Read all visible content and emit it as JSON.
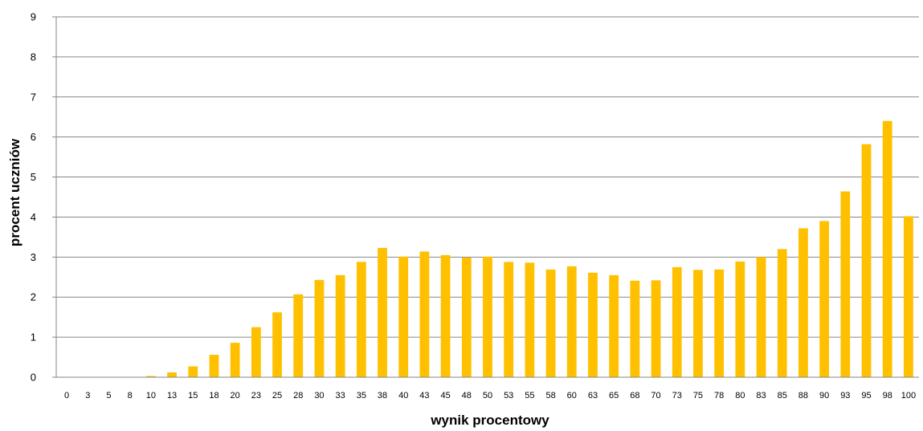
{
  "chart_data": {
    "type": "bar",
    "title": "",
    "xlabel": "wynik procentowy",
    "ylabel": "procent uczniów",
    "ylim": [
      0,
      9
    ],
    "yticks": [
      0,
      1,
      2,
      3,
      4,
      5,
      6,
      7,
      8,
      9
    ],
    "grid": true,
    "legend": "none",
    "bar_color": "#FFC000",
    "grid_color": "#868686",
    "categories": [
      "0",
      "3",
      "5",
      "8",
      "10",
      "13",
      "15",
      "18",
      "20",
      "23",
      "25",
      "28",
      "30",
      "33",
      "35",
      "38",
      "40",
      "43",
      "45",
      "48",
      "50",
      "53",
      "55",
      "58",
      "60",
      "63",
      "65",
      "68",
      "70",
      "73",
      "75",
      "78",
      "80",
      "83",
      "85",
      "88",
      "90",
      "93",
      "95",
      "98",
      "100"
    ],
    "values": [
      0,
      0,
      0,
      0,
      0.03,
      0.12,
      0.27,
      0.56,
      0.86,
      1.25,
      1.62,
      2.07,
      2.43,
      2.55,
      2.88,
      3.23,
      3.01,
      3.14,
      3.05,
      2.99,
      3.01,
      2.88,
      2.86,
      2.69,
      2.77,
      2.61,
      2.55,
      2.41,
      2.42,
      2.75,
      2.68,
      2.69,
      2.89,
      3.0,
      3.2,
      3.72,
      3.9,
      4.64,
      5.82,
      6.4,
      4.02
    ]
  }
}
